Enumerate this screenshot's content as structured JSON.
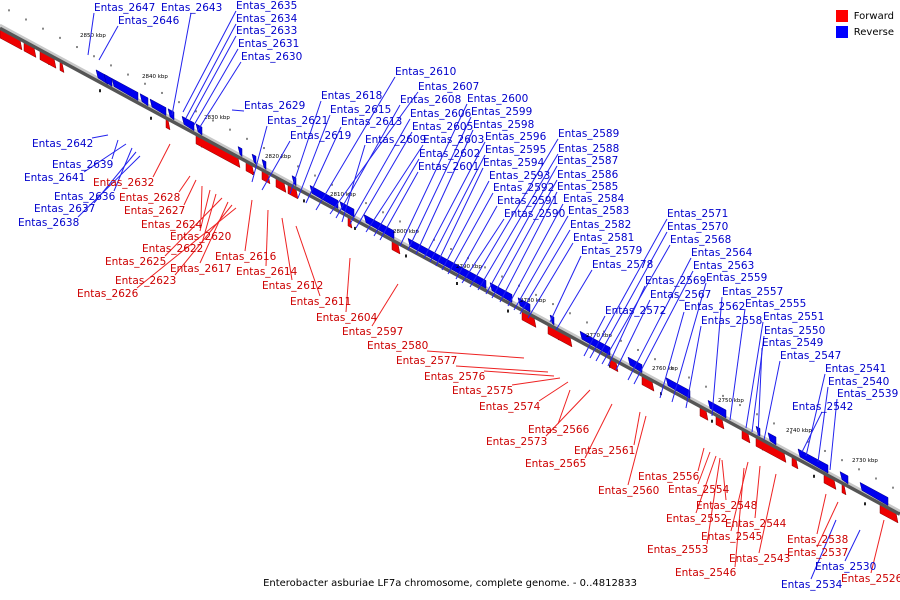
{
  "legend": {
    "forward": {
      "label": "Forward",
      "color": "#ff0000"
    },
    "reverse": {
      "label": "Reverse",
      "color": "#0000ff"
    }
  },
  "caption": "Enterobacter asburiae LF7a chromosome, complete genome. - 0..4812833",
  "axis": {
    "ticks": [
      {
        "label": "2850 kbp",
        "pos": 2850
      },
      {
        "label": "2840 kbp",
        "pos": 2840
      },
      {
        "label": "2830 kbp",
        "pos": 2830
      },
      {
        "label": "2820 kbp",
        "pos": 2820
      },
      {
        "label": "2810 kbp",
        "pos": 2810
      },
      {
        "label": "2800 kbp",
        "pos": 2800
      },
      {
        "label": "2790 kbp",
        "pos": 2790
      },
      {
        "label": "2780 kbp",
        "pos": 2780
      },
      {
        "label": "2770 kbp",
        "pos": 2770
      },
      {
        "label": "2760 kbp",
        "pos": 2760
      },
      {
        "label": "2750 kbp",
        "pos": 2750
      },
      {
        "label": "2740 kbp",
        "pos": 2740
      },
      {
        "label": "2730 kbp",
        "pos": 2730
      }
    ]
  },
  "reverse_genes": [
    "Entas_2647",
    "Entas_2643",
    "Entas_2635",
    "Entas_2634",
    "Entas_2646",
    "Entas_2633",
    "Entas_2631",
    "Entas_2630",
    "Entas_2629",
    "Entas_2642",
    "Entas_2639",
    "Entas_2641",
    "Entas_2636",
    "Entas_2637",
    "Entas_2638",
    "Entas_2621",
    "Entas_2619",
    "Entas_2618",
    "Entas_2615",
    "Entas_2613",
    "Entas_2610",
    "Entas_2607",
    "Entas_2608",
    "Entas_2606",
    "Entas_2605",
    "Entas_2609",
    "Entas_2603",
    "Entas_2602",
    "Entas_2601",
    "Entas_2600",
    "Entas_2599",
    "Entas_2598",
    "Entas_2596",
    "Entas_2595",
    "Entas_2594",
    "Entas_2593",
    "Entas_2592",
    "Entas_2591",
    "Entas_2590",
    "Entas_2589",
    "Entas_2588",
    "Entas_2587",
    "Entas_2586",
    "Entas_2585",
    "Entas_2584",
    "Entas_2583",
    "Entas_2582",
    "Entas_2581",
    "Entas_2579",
    "Entas_2578",
    "Entas_2572",
    "Entas_2571",
    "Entas_2570",
    "Entas_2568",
    "Entas_2569",
    "Entas_2567",
    "Entas_2564",
    "Entas_2563",
    "Entas_2562",
    "Entas_2559",
    "Entas_2558",
    "Entas_2557",
    "Entas_2555",
    "Entas_2551",
    "Entas_2550",
    "Entas_2549",
    "Entas_2547",
    "Entas_2541",
    "Entas_2540",
    "Entas_2539",
    "Entas_2542",
    "Entas_2534",
    "Entas_2530"
  ],
  "forward_genes": [
    "Entas_2632",
    "Entas_2628",
    "Entas_2627",
    "Entas_2624",
    "Entas_2620",
    "Entas_2622",
    "Entas_2625",
    "Entas_2617",
    "Entas_2623",
    "Entas_2626",
    "Entas_2616",
    "Entas_2614",
    "Entas_2612",
    "Entas_2611",
    "Entas_2604",
    "Entas_2597",
    "Entas_2580",
    "Entas_2577",
    "Entas_2576",
    "Entas_2575",
    "Entas_2574",
    "Entas_2566",
    "Entas_2573",
    "Entas_2565",
    "Entas_2561",
    "Entas_2560",
    "Entas_2556",
    "Entas_2554",
    "Entas_2552",
    "Entas_2548",
    "Entas_2544",
    "Entas_2545",
    "Entas_2553",
    "Entas_2546",
    "Entas_2543",
    "Entas_2538",
    "Entas_2537",
    "Entas_2526"
  ]
}
